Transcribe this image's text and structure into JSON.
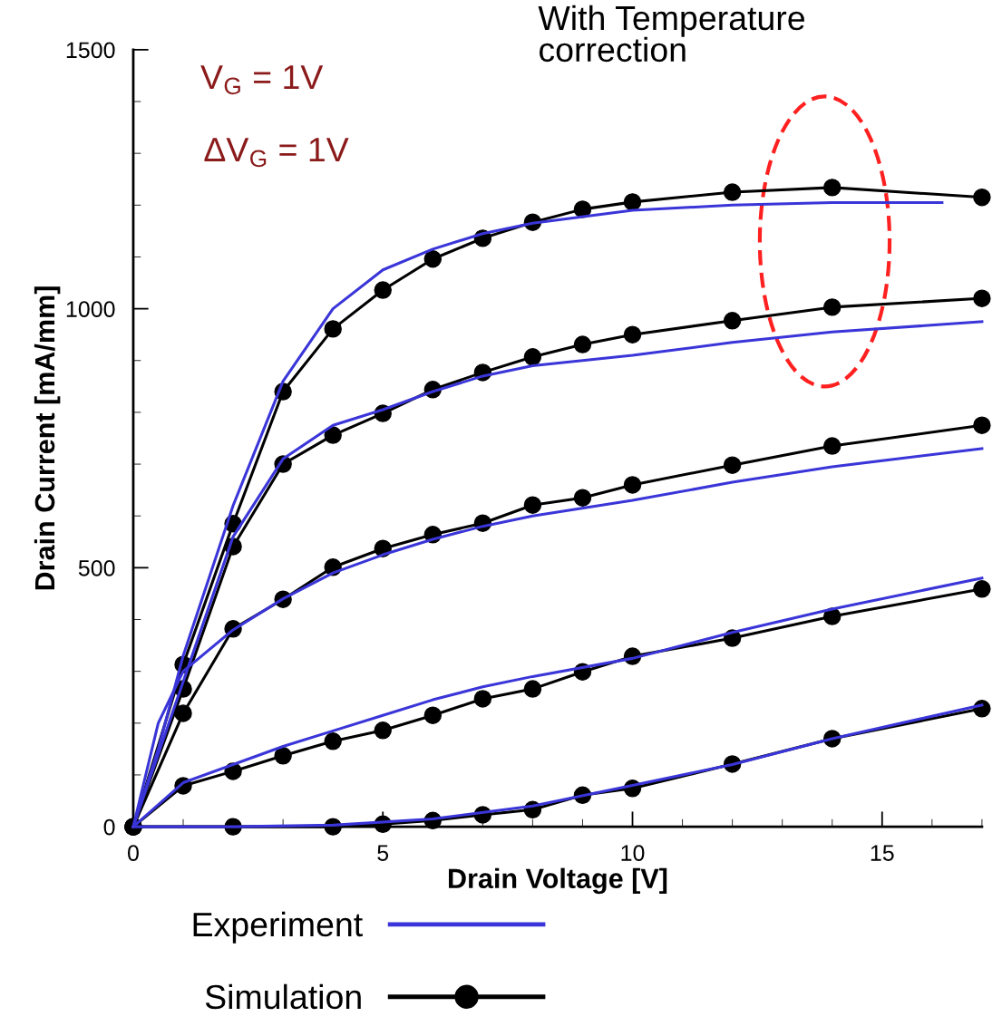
{
  "chart_data": {
    "type": "line",
    "xlabel": "Drain Voltage [V]",
    "ylabel": "Drain Current [mA/mm]",
    "xlim": [
      0,
      17
    ],
    "ylim": [
      0,
      1500
    ],
    "xticks": [
      0,
      5,
      10,
      15
    ],
    "yticks": [
      0,
      500,
      1000,
      1500
    ],
    "grid": false,
    "legend": "bottom",
    "annotations": [
      "V$_{G}$ = 1V",
      "ΔV$_{G}$ = 1V",
      "With Temperature\ncorrection"
    ],
    "series": [
      {
        "name": "Experiment",
        "color": "#3a35d8",
        "marker": "none",
        "x": [
          0,
          0.5,
          1,
          2,
          3,
          4,
          5,
          6,
          7,
          8,
          10,
          12,
          14,
          16.2
        ],
        "values": [
          0,
          150,
          330,
          620,
          860,
          1000,
          1075,
          1115,
          1145,
          1165,
          1190,
          1200,
          1205,
          1205
        ]
      },
      {
        "color": "#3a35d8",
        "marker": "none",
        "x": [
          0,
          1,
          2,
          3,
          4,
          5,
          6,
          7,
          8,
          10,
          12,
          14,
          17
        ],
        "values": [
          0,
          280,
          560,
          710,
          775,
          805,
          840,
          870,
          890,
          910,
          935,
          955,
          975
        ]
      },
      {
        "color": "#3a35d8",
        "marker": "none",
        "x": [
          0,
          0.5,
          1,
          2,
          3,
          4,
          5,
          6,
          7,
          8,
          10,
          12,
          14,
          17
        ],
        "values": [
          0,
          200,
          300,
          380,
          440,
          490,
          525,
          555,
          580,
          600,
          630,
          665,
          695,
          730
        ]
      },
      {
        "color": "#3a35d8",
        "marker": "none",
        "x": [
          0,
          1,
          2,
          3,
          4,
          5,
          6,
          7,
          8,
          10,
          12,
          14,
          17
        ],
        "values": [
          0,
          85,
          120,
          155,
          185,
          215,
          245,
          270,
          290,
          325,
          375,
          420,
          480
        ]
      },
      {
        "color": "#3a35d8",
        "marker": "none",
        "x": [
          0,
          2,
          4,
          6,
          8,
          10,
          12,
          14,
          17
        ],
        "values": [
          0,
          0,
          3,
          15,
          40,
          80,
          120,
          170,
          235
        ]
      },
      {
        "name": "Simulation",
        "color": "#000000",
        "marker": "circle",
        "x": [
          0,
          1,
          2,
          3,
          4,
          5,
          6,
          7,
          8,
          9,
          10,
          12,
          14,
          17
        ],
        "values": [
          0,
          313,
          585,
          840,
          961,
          1036,
          1096,
          1136,
          1167,
          1192,
          1206,
          1225,
          1234,
          1215
        ]
      },
      {
        "color": "#000000",
        "marker": "circle",
        "x": [
          0,
          1,
          2,
          3,
          4,
          5,
          6,
          7,
          8,
          9,
          10,
          12,
          14,
          17
        ],
        "values": [
          0,
          266,
          541,
          700,
          756,
          798,
          844,
          877,
          907,
          931,
          950,
          977,
          1003,
          1020
        ]
      },
      {
        "color": "#000000",
        "marker": "circle",
        "x": [
          0,
          1,
          2,
          3,
          4,
          5,
          6,
          7,
          8,
          9,
          10,
          12,
          14,
          17
        ],
        "values": [
          0,
          219,
          382,
          439,
          501,
          537,
          564,
          586,
          621,
          635,
          660,
          698,
          735,
          775
        ]
      },
      {
        "color": "#000000",
        "marker": "circle",
        "x": [
          0,
          1,
          2,
          3,
          4,
          5,
          6,
          7,
          8,
          9,
          10,
          12,
          14,
          17
        ],
        "values": [
          0,
          79,
          107,
          137,
          165,
          186,
          215,
          247,
          266,
          299,
          329,
          364,
          406,
          459
        ]
      },
      {
        "color": "#000000",
        "marker": "circle",
        "x": [
          0,
          2,
          4,
          5,
          6,
          7,
          8,
          9,
          10,
          12,
          14,
          17
        ],
        "values": [
          0,
          0,
          0,
          5,
          12,
          23,
          33,
          61,
          74,
          121,
          170,
          228
        ]
      }
    ]
  }
}
